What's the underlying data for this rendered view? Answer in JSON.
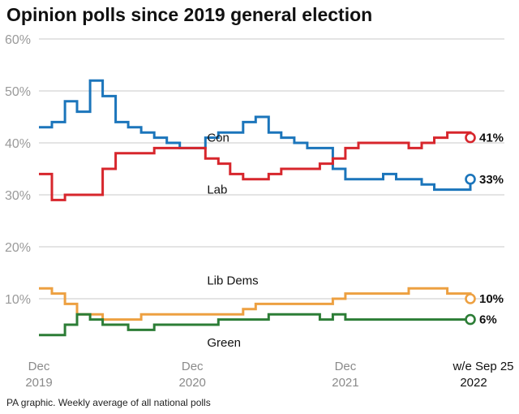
{
  "title": "Opinion polls since 2019 general election",
  "footnote": "PA graphic. Weekly average of all national polls",
  "colors": {
    "Con": "#1b75bb",
    "Lab": "#d7262c",
    "Lib Dems": "#eda041",
    "Green": "#2c7d36",
    "grid": "#c8c8c8",
    "axis_text": "#9a9a9a"
  },
  "chart_data": {
    "type": "line",
    "title": "Opinion polls since 2019 general election",
    "ylim": [
      0,
      60
    ],
    "yticks": [
      10,
      20,
      30,
      40,
      50,
      60
    ],
    "ytick_labels": [
      "10%",
      "20%",
      "30%",
      "40%",
      "50%",
      "60%"
    ],
    "xlim": [
      "2019-12-01",
      "2022-09-25"
    ],
    "xticks": [
      {
        "date": "2019-12-01",
        "line1": "Dec",
        "line2": "2019"
      },
      {
        "date": "2020-12-01",
        "line1": "Dec",
        "line2": "2020"
      },
      {
        "date": "2021-12-01",
        "line1": "Dec",
        "line2": "2021"
      },
      {
        "date": "2022-09-25",
        "line1": "w/e Sep 25",
        "line2": "2022"
      }
    ],
    "grid": true,
    "legend": "inline labels",
    "series": [
      {
        "name": "Con",
        "end_label": "33%",
        "label_at": [
          "2021-01-05",
          41
        ],
        "points": [
          [
            "2019-12-01",
            43
          ],
          [
            "2020-01-01",
            44
          ],
          [
            "2020-02-01",
            48
          ],
          [
            "2020-03-01",
            46
          ],
          [
            "2020-04-01",
            52
          ],
          [
            "2020-05-01",
            49
          ],
          [
            "2020-06-01",
            44
          ],
          [
            "2020-07-01",
            43
          ],
          [
            "2020-08-01",
            42
          ],
          [
            "2020-09-01",
            41
          ],
          [
            "2020-10-01",
            40
          ],
          [
            "2020-11-01",
            39
          ],
          [
            "2020-12-01",
            39
          ],
          [
            "2021-01-01",
            41
          ],
          [
            "2021-02-01",
            42
          ],
          [
            "2021-03-01",
            42
          ],
          [
            "2021-04-01",
            44
          ],
          [
            "2021-05-01",
            45
          ],
          [
            "2021-06-01",
            42
          ],
          [
            "2021-07-01",
            41
          ],
          [
            "2021-08-01",
            40
          ],
          [
            "2021-09-01",
            39
          ],
          [
            "2021-10-01",
            39
          ],
          [
            "2021-11-01",
            35
          ],
          [
            "2021-12-01",
            33
          ],
          [
            "2022-01-01",
            33
          ],
          [
            "2022-02-01",
            33
          ],
          [
            "2022-03-01",
            34
          ],
          [
            "2022-04-01",
            33
          ],
          [
            "2022-05-01",
            33
          ],
          [
            "2022-06-01",
            32
          ],
          [
            "2022-07-01",
            31
          ],
          [
            "2022-08-01",
            31
          ],
          [
            "2022-09-25",
            33
          ]
        ]
      },
      {
        "name": "Lab",
        "end_label": "41%",
        "label_at": [
          "2021-01-05",
          31
        ],
        "points": [
          [
            "2019-12-01",
            34
          ],
          [
            "2020-01-01",
            29
          ],
          [
            "2020-02-01",
            30
          ],
          [
            "2020-03-01",
            30
          ],
          [
            "2020-04-01",
            30
          ],
          [
            "2020-05-01",
            35
          ],
          [
            "2020-06-01",
            38
          ],
          [
            "2020-07-01",
            38
          ],
          [
            "2020-08-01",
            38
          ],
          [
            "2020-09-01",
            39
          ],
          [
            "2020-10-01",
            39
          ],
          [
            "2020-11-01",
            39
          ],
          [
            "2020-12-01",
            39
          ],
          [
            "2021-01-01",
            37
          ],
          [
            "2021-02-01",
            36
          ],
          [
            "2021-03-01",
            34
          ],
          [
            "2021-04-01",
            33
          ],
          [
            "2021-05-01",
            33
          ],
          [
            "2021-06-01",
            34
          ],
          [
            "2021-07-01",
            35
          ],
          [
            "2021-08-01",
            35
          ],
          [
            "2021-09-01",
            35
          ],
          [
            "2021-10-01",
            36
          ],
          [
            "2021-11-01",
            37
          ],
          [
            "2021-12-01",
            39
          ],
          [
            "2022-01-01",
            40
          ],
          [
            "2022-02-01",
            40
          ],
          [
            "2022-03-01",
            40
          ],
          [
            "2022-04-01",
            40
          ],
          [
            "2022-05-01",
            39
          ],
          [
            "2022-06-01",
            40
          ],
          [
            "2022-07-01",
            41
          ],
          [
            "2022-08-01",
            42
          ],
          [
            "2022-09-25",
            41
          ]
        ]
      },
      {
        "name": "Lib Dems",
        "end_label": "10%",
        "label_at": [
          "2021-01-05",
          13.5
        ],
        "points": [
          [
            "2019-12-01",
            12
          ],
          [
            "2020-01-01",
            11
          ],
          [
            "2020-02-01",
            9
          ],
          [
            "2020-03-01",
            7
          ],
          [
            "2020-04-01",
            7
          ],
          [
            "2020-05-01",
            6
          ],
          [
            "2020-06-01",
            6
          ],
          [
            "2020-07-01",
            6
          ],
          [
            "2020-08-01",
            7
          ],
          [
            "2020-09-01",
            7
          ],
          [
            "2020-10-01",
            7
          ],
          [
            "2020-11-01",
            7
          ],
          [
            "2020-12-01",
            7
          ],
          [
            "2021-01-01",
            7
          ],
          [
            "2021-02-01",
            7
          ],
          [
            "2021-03-01",
            7
          ],
          [
            "2021-04-01",
            8
          ],
          [
            "2021-05-01",
            9
          ],
          [
            "2021-06-01",
            9
          ],
          [
            "2021-07-01",
            9
          ],
          [
            "2021-08-01",
            9
          ],
          [
            "2021-09-01",
            9
          ],
          [
            "2021-10-01",
            9
          ],
          [
            "2021-11-01",
            10
          ],
          [
            "2021-12-01",
            11
          ],
          [
            "2022-01-01",
            11
          ],
          [
            "2022-02-01",
            11
          ],
          [
            "2022-03-01",
            11
          ],
          [
            "2022-04-01",
            11
          ],
          [
            "2022-05-01",
            12
          ],
          [
            "2022-06-01",
            12
          ],
          [
            "2022-07-01",
            12
          ],
          [
            "2022-08-01",
            11
          ],
          [
            "2022-09-25",
            10
          ]
        ]
      },
      {
        "name": "Green",
        "end_label": "6%",
        "label_at": [
          "2021-01-05",
          1.6
        ],
        "points": [
          [
            "2019-12-01",
            3
          ],
          [
            "2020-01-01",
            3
          ],
          [
            "2020-02-01",
            5
          ],
          [
            "2020-03-01",
            7
          ],
          [
            "2020-04-01",
            6
          ],
          [
            "2020-05-01",
            5
          ],
          [
            "2020-06-01",
            5
          ],
          [
            "2020-07-01",
            4
          ],
          [
            "2020-08-01",
            4
          ],
          [
            "2020-09-01",
            5
          ],
          [
            "2020-10-01",
            5
          ],
          [
            "2020-11-01",
            5
          ],
          [
            "2020-12-01",
            5
          ],
          [
            "2021-01-01",
            5
          ],
          [
            "2021-02-01",
            6
          ],
          [
            "2021-03-01",
            6
          ],
          [
            "2021-04-01",
            6
          ],
          [
            "2021-05-01",
            6
          ],
          [
            "2021-06-01",
            7
          ],
          [
            "2021-07-01",
            7
          ],
          [
            "2021-08-01",
            7
          ],
          [
            "2021-09-01",
            7
          ],
          [
            "2021-10-01",
            6
          ],
          [
            "2021-11-01",
            7
          ],
          [
            "2021-12-01",
            6
          ],
          [
            "2022-01-01",
            6
          ],
          [
            "2022-02-01",
            6
          ],
          [
            "2022-03-01",
            6
          ],
          [
            "2022-04-01",
            6
          ],
          [
            "2022-05-01",
            6
          ],
          [
            "2022-06-01",
            6
          ],
          [
            "2022-07-01",
            6
          ],
          [
            "2022-08-01",
            6
          ],
          [
            "2022-09-25",
            6
          ]
        ]
      }
    ]
  }
}
